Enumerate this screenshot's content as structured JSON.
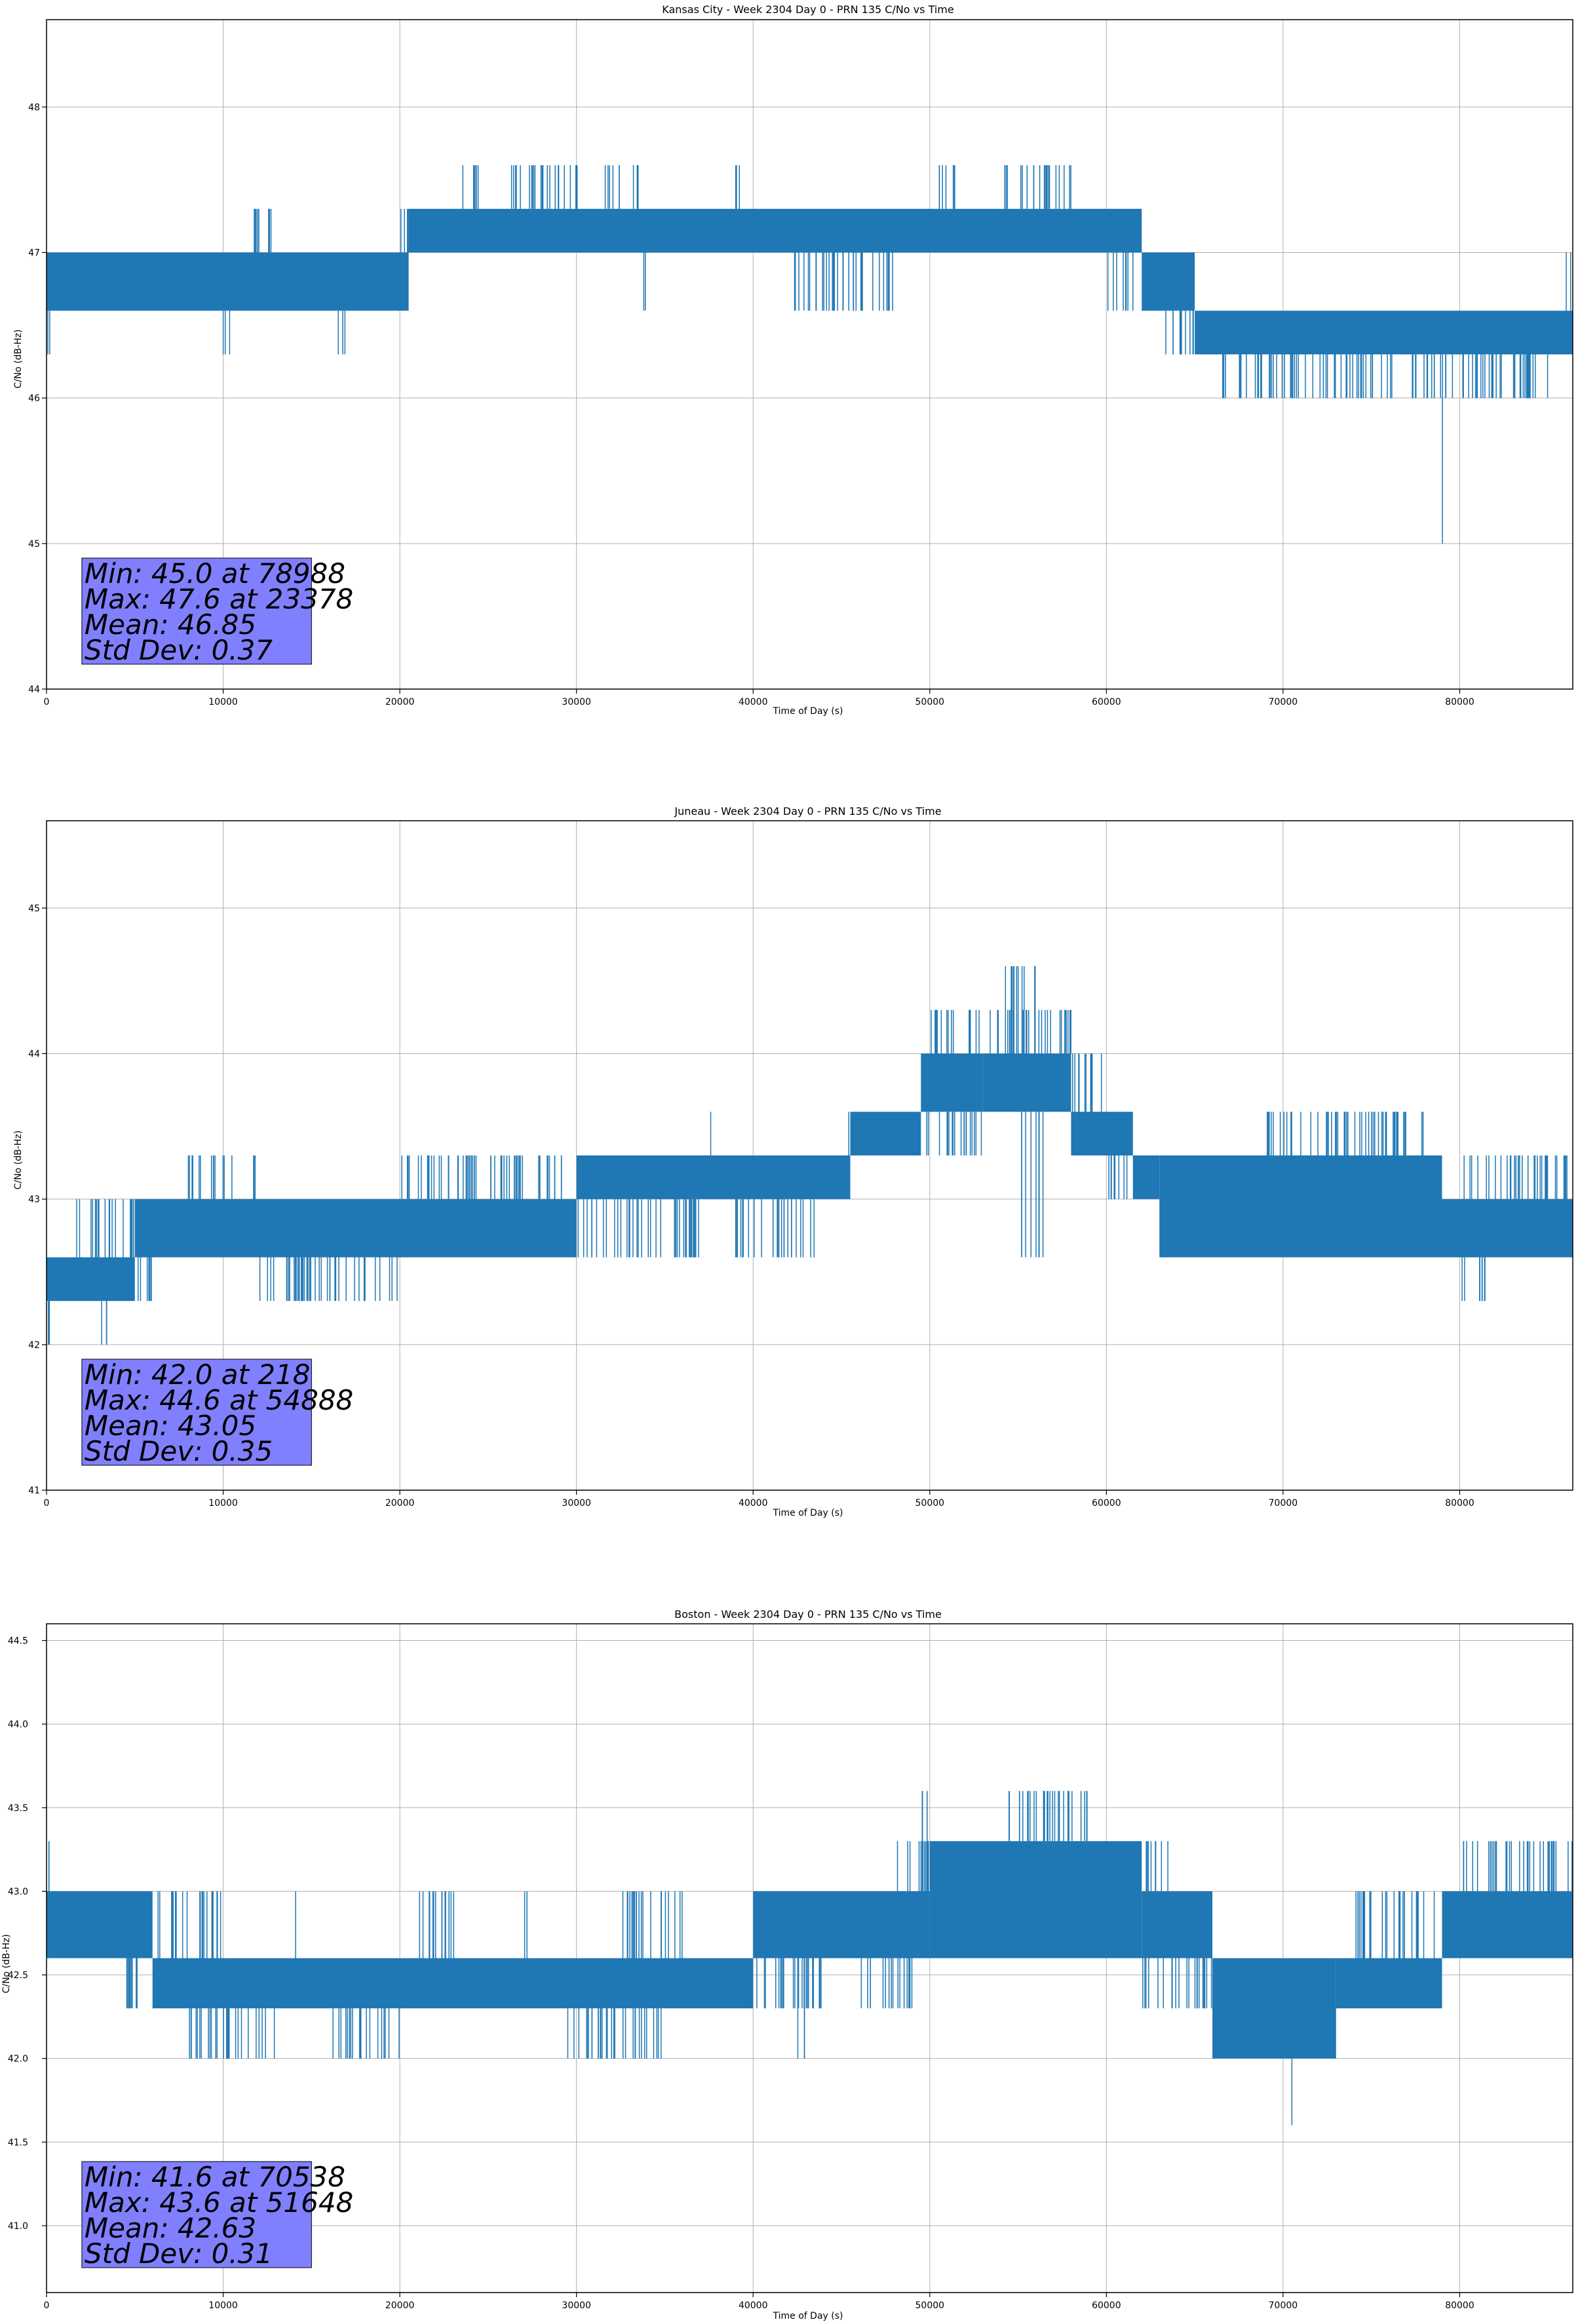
{
  "figure": {
    "background": "#ffffff",
    "line_color": "#1f77b4",
    "stats_box_color": "#8080ff"
  },
  "chart_data": [
    {
      "type": "line",
      "title": "Kansas City - Week 2304 Day 0 - PRN 135 C/No vs Time",
      "xlabel": "Time of Day (s)",
      "ylabel": "C/No (dB-Hz)",
      "xlim": [
        0,
        86400
      ],
      "ylim": [
        44,
        48.6
      ],
      "xticks": [
        0,
        10000,
        20000,
        30000,
        40000,
        50000,
        60000,
        70000,
        80000
      ],
      "xticklabels": [
        "0",
        "10000",
        "20000",
        "30000",
        "40000",
        "50000",
        "60000",
        "70000",
        "80000"
      ],
      "yticks": [
        44,
        45,
        46,
        47,
        48
      ],
      "yticklabels": [
        "44",
        "45",
        "46",
        "47",
        "48"
      ],
      "grid": true,
      "series": [
        {
          "segments": [
            {
              "x0": 0,
              "x1": 20500,
              "low": 46.6,
              "high": 47.0
            },
            {
              "x0": 20500,
              "x1": 62000,
              "low": 47.0,
              "high": 47.3
            },
            {
              "x0": 62000,
              "x1": 65000,
              "low": 46.6,
              "high": 47.0
            },
            {
              "x0": 65000,
              "x1": 86400,
              "low": 46.3,
              "high": 46.6
            }
          ],
          "upper_spikes": [
            {
              "x0": 11500,
              "x1": 13000,
              "to": 47.3
            },
            {
              "x0": 20000,
              "x1": 21000,
              "to": 47.3
            },
            {
              "x0": 23500,
              "x1": 24500,
              "to": 47.6
            },
            {
              "x0": 26000,
              "x1": 30500,
              "to": 47.6
            },
            {
              "x0": 31500,
              "x1": 33500,
              "to": 47.6
            },
            {
              "x0": 39000,
              "x1": 39500,
              "to": 47.6
            },
            {
              "x0": 50500,
              "x1": 52000,
              "to": 47.6
            },
            {
              "x0": 54000,
              "x1": 58000,
              "to": 47.6
            },
            {
              "x0": 86000,
              "x1": 86400,
              "to": 47.0
            }
          ],
          "lower_spikes": [
            {
              "x0": 0,
              "x1": 300,
              "to": 46.3
            },
            {
              "x0": 10000,
              "x1": 10500,
              "to": 46.3
            },
            {
              "x0": 16500,
              "x1": 17000,
              "to": 46.3
            },
            {
              "x0": 33800,
              "x1": 34200,
              "to": 46.6
            },
            {
              "x0": 42000,
              "x1": 48000,
              "to": 46.6
            },
            {
              "x0": 60000,
              "x1": 61500,
              "to": 46.6
            },
            {
              "x0": 63000,
              "x1": 66000,
              "to": 46.3
            },
            {
              "x0": 66500,
              "x1": 85000,
              "to": 46.0
            },
            {
              "x0": 79000,
              "x1": 79050,
              "to": 45.0
            }
          ]
        }
      ],
      "stats": [
        "Min: 45.0 at 78988",
        "Max: 47.6 at 23378",
        "Mean: 46.85",
        "Std Dev: 0.37"
      ]
    },
    {
      "type": "line",
      "title": "Juneau - Week 2304 Day 0 - PRN 135 C/No vs Time",
      "xlabel": "Time of Day (s)",
      "ylabel": "C/No (dB-Hz)",
      "xlim": [
        0,
        86400
      ],
      "ylim": [
        41,
        45.6
      ],
      "xticks": [
        0,
        10000,
        20000,
        30000,
        40000,
        50000,
        60000,
        70000,
        80000
      ],
      "xticklabels": [
        "0",
        "10000",
        "20000",
        "30000",
        "40000",
        "50000",
        "60000",
        "70000",
        "80000"
      ],
      "yticks": [
        41,
        42,
        43,
        44,
        45
      ],
      "yticklabels": [
        "41",
        "42",
        "43",
        "44",
        "45"
      ],
      "grid": true,
      "series": [
        {
          "segments": [
            {
              "x0": 0,
              "x1": 5000,
              "low": 42.3,
              "high": 42.6
            },
            {
              "x0": 5000,
              "x1": 30000,
              "low": 42.6,
              "high": 43.0
            },
            {
              "x0": 30000,
              "x1": 45500,
              "low": 43.0,
              "high": 43.3
            },
            {
              "x0": 45500,
              "x1": 49500,
              "low": 43.3,
              "high": 43.6
            },
            {
              "x0": 49500,
              "x1": 53000,
              "low": 43.6,
              "high": 44.0
            },
            {
              "x0": 53000,
              "x1": 58000,
              "low": 43.6,
              "high": 44.0
            },
            {
              "x0": 58000,
              "x1": 61500,
              "low": 43.3,
              "high": 43.6
            },
            {
              "x0": 61500,
              "x1": 63000,
              "low": 43.0,
              "high": 43.3
            },
            {
              "x0": 63000,
              "x1": 79000,
              "low": 42.6,
              "high": 43.3
            },
            {
              "x0": 79000,
              "x1": 86400,
              "low": 42.6,
              "high": 43.0
            }
          ],
          "upper_spikes": [
            {
              "x0": 1500,
              "x1": 5500,
              "to": 43.0
            },
            {
              "x0": 8000,
              "x1": 10500,
              "to": 43.3
            },
            {
              "x0": 11500,
              "x1": 12000,
              "to": 43.3
            },
            {
              "x0": 20000,
              "x1": 30000,
              "to": 43.3
            },
            {
              "x0": 37500,
              "x1": 37700,
              "to": 43.6
            },
            {
              "x0": 45000,
              "x1": 49500,
              "to": 43.6
            },
            {
              "x0": 50000,
              "x1": 58000,
              "to": 44.3
            },
            {
              "x0": 54000,
              "x1": 56000,
              "to": 44.6
            },
            {
              "x0": 58000,
              "x1": 60000,
              "to": 44.0
            },
            {
              "x0": 69000,
              "x1": 78000,
              "to": 43.6
            },
            {
              "x0": 80000,
              "x1": 86400,
              "to": 43.3
            }
          ],
          "lower_spikes": [
            {
              "x0": 100,
              "x1": 400,
              "to": 42.0
            },
            {
              "x0": 500,
              "x1": 6000,
              "to": 42.3
            },
            {
              "x0": 3000,
              "x1": 3500,
              "to": 42.0
            },
            {
              "x0": 12000,
              "x1": 20000,
              "to": 42.3
            },
            {
              "x0": 30000,
              "x1": 37000,
              "to": 42.6
            },
            {
              "x0": 39000,
              "x1": 43500,
              "to": 42.6
            },
            {
              "x0": 49500,
              "x1": 53000,
              "to": 43.3
            },
            {
              "x0": 55000,
              "x1": 56500,
              "to": 42.6
            },
            {
              "x0": 60000,
              "x1": 61500,
              "to": 43.0
            },
            {
              "x0": 80000,
              "x1": 81500,
              "to": 42.3
            }
          ]
        }
      ],
      "stats": [
        "Min: 42.0 at 218",
        "Max: 44.6 at 54888",
        "Mean: 43.05",
        "Std Dev: 0.35"
      ]
    },
    {
      "type": "line",
      "title": "Boston - Week 2304 Day 0 - PRN 135 C/No vs Time",
      "xlabel": "Time of Day (s)",
      "ylabel": "C/No (dB-Hz)",
      "xlim": [
        0,
        86400
      ],
      "ylim": [
        40.6,
        44.6
      ],
      "xticks": [
        0,
        10000,
        20000,
        30000,
        40000,
        50000,
        60000,
        70000,
        80000
      ],
      "xticklabels": [
        "0",
        "10000",
        "20000",
        "30000",
        "40000",
        "50000",
        "60000",
        "70000",
        "80000"
      ],
      "yticks": [
        41.0,
        41.5,
        42.0,
        42.5,
        43.0,
        43.5,
        44.0,
        44.5
      ],
      "yticklabels": [
        "41.0",
        "41.5",
        "42.0",
        "42.5",
        "43.0",
        "43.5",
        "44.0",
        "44.5"
      ],
      "grid": true,
      "series": [
        {
          "segments": [
            {
              "x0": 0,
              "x1": 6000,
              "low": 42.6,
              "high": 43.0
            },
            {
              "x0": 6000,
              "x1": 40000,
              "low": 42.3,
              "high": 42.6
            },
            {
              "x0": 40000,
              "x1": 50000,
              "low": 42.6,
              "high": 43.0
            },
            {
              "x0": 50000,
              "x1": 62000,
              "low": 42.6,
              "high": 43.3
            },
            {
              "x0": 62000,
              "x1": 66000,
              "low": 42.6,
              "high": 43.0
            },
            {
              "x0": 66000,
              "x1": 73000,
              "low": 42.0,
              "high": 42.6
            },
            {
              "x0": 73000,
              "x1": 79000,
              "low": 42.3,
              "high": 42.6
            },
            {
              "x0": 79000,
              "x1": 86400,
              "low": 42.6,
              "high": 43.0
            }
          ],
          "upper_spikes": [
            {
              "x0": 0,
              "x1": 300,
              "to": 43.3
            },
            {
              "x0": 6000,
              "x1": 10000,
              "to": 43.0
            },
            {
              "x0": 14000,
              "x1": 14200,
              "to": 43.0
            },
            {
              "x0": 21000,
              "x1": 23500,
              "to": 43.0
            },
            {
              "x0": 27000,
              "x1": 27300,
              "to": 43.0
            },
            {
              "x0": 32000,
              "x1": 36000,
              "to": 43.0
            },
            {
              "x0": 48000,
              "x1": 50500,
              "to": 43.3
            },
            {
              "x0": 49500,
              "x1": 50000,
              "to": 43.6
            },
            {
              "x0": 54000,
              "x1": 59000,
              "to": 43.6
            },
            {
              "x0": 62000,
              "x1": 63500,
              "to": 43.3
            },
            {
              "x0": 74000,
              "x1": 79000,
              "to": 43.0
            },
            {
              "x0": 80000,
              "x1": 86400,
              "to": 43.3
            }
          ],
          "lower_spikes": [
            {
              "x0": 4500,
              "x1": 7000,
              "to": 42.3
            },
            {
              "x0": 8000,
              "x1": 13000,
              "to": 42.0
            },
            {
              "x0": 16000,
              "x1": 20000,
              "to": 42.0
            },
            {
              "x0": 29000,
              "x1": 35000,
              "to": 42.0
            },
            {
              "x0": 40000,
              "x1": 44000,
              "to": 42.3
            },
            {
              "x0": 42500,
              "x1": 43000,
              "to": 42.0
            },
            {
              "x0": 46000,
              "x1": 49000,
              "to": 42.3
            },
            {
              "x0": 62000,
              "x1": 66000,
              "to": 42.3
            },
            {
              "x0": 66000,
              "x1": 72000,
              "to": 42.0
            },
            {
              "x0": 70400,
              "x1": 70600,
              "to": 41.6
            }
          ]
        }
      ],
      "stats": [
        "Min: 41.6 at 70538",
        "Max: 43.6 at 51648",
        "Mean: 42.63",
        "Std Dev: 0.31"
      ]
    }
  ]
}
